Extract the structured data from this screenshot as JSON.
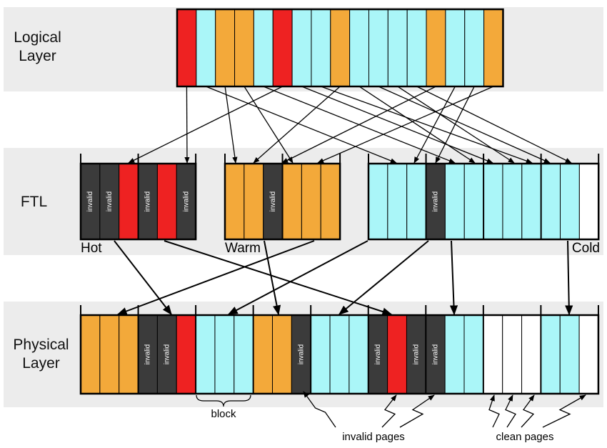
{
  "logical": {
    "title": "Logical Layer"
  },
  "ftl": {
    "title": "FTL",
    "groups": [
      "Hot",
      "Warm",
      "Cold"
    ],
    "invalid_labels": [
      "invalid",
      "invalid",
      "invalid",
      "invalid",
      "invalid",
      "invalid"
    ]
  },
  "physical": {
    "title": "Physical Layer",
    "invalid_labels": [
      "invalid",
      "invalid",
      "invalid",
      "invalid",
      "invalid",
      "invalid"
    ],
    "annotations": {
      "block": "block",
      "invalid_pages": "invalid pages",
      "clean_pages": "clean pages"
    }
  }
}
